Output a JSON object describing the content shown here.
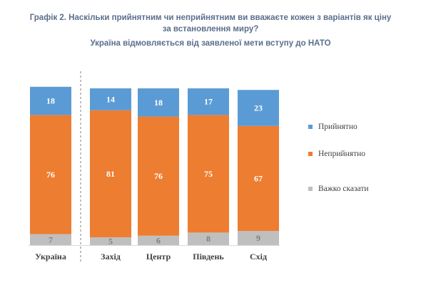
{
  "chart_data": {
    "type": "bar",
    "stacked": true,
    "title_lines": [
      "Графік 2. Наскільки прийнятним чи неприйнятним ви вважаєте кожен з варіантів як ціну",
      "за встановлення миру?"
    ],
    "subtitle": "Україна відмовляється від заявленої мети вступу до НАТО",
    "categories": [
      "Україна",
      "Захід",
      "Центр",
      "Південь",
      "Схід"
    ],
    "series": [
      {
        "name": "Прийнятно",
        "color": "#5b9bd5",
        "values": [
          18,
          14,
          18,
          17,
          23
        ]
      },
      {
        "name": "Неприйнятно",
        "color": "#ed7d31",
        "values": [
          76,
          81,
          76,
          75,
          67
        ]
      },
      {
        "name": "Важко сказати",
        "color": "#bfbfbf",
        "values": [
          7,
          5,
          6,
          8,
          9
        ]
      }
    ],
    "ylim": [
      0,
      100
    ],
    "grid": false,
    "legend": "right",
    "separator_after_category": 0
  }
}
